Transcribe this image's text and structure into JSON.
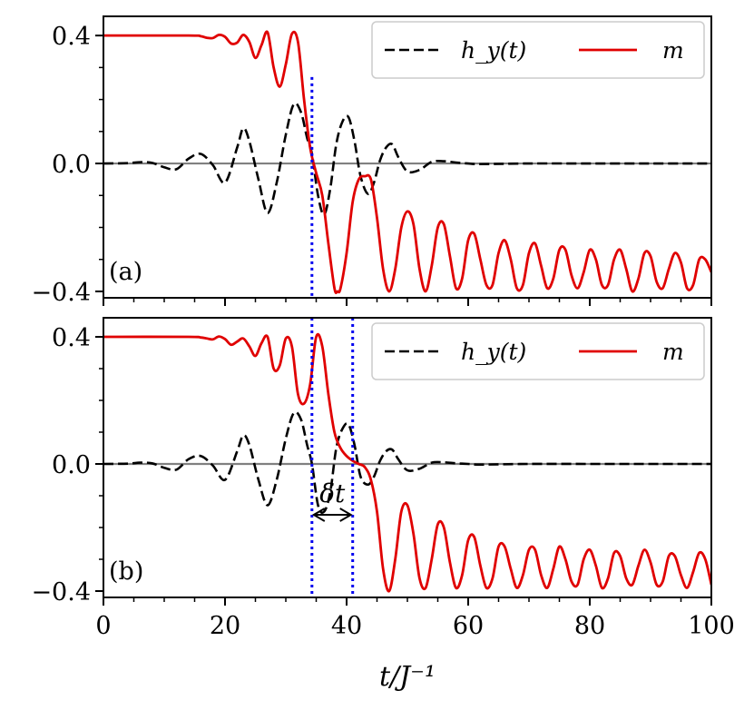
{
  "chart_data": [
    {
      "type": "line",
      "panel_label": "(a)",
      "xlim": [
        0,
        100
      ],
      "ylim": [
        -0.42,
        0.46
      ],
      "yticks": [
        0.4,
        0.0,
        -0.4
      ],
      "ytick_labels": [
        "0.4",
        "0.0",
        "−0.4"
      ],
      "zero_line": true,
      "legend": {
        "placement": "top-right",
        "entries": [
          "h_y(t)",
          "m"
        ]
      },
      "vlines": [
        34.3
      ],
      "series": [
        {
          "name": "h_y(t)",
          "style": "dashed",
          "color": "#000000",
          "x": [
            0,
            4,
            6,
            8,
            10,
            12,
            14,
            16,
            18,
            20,
            22,
            23,
            24,
            25.5,
            27,
            28.5,
            30,
            31.3,
            32.5,
            33.5,
            34.3,
            35.3,
            36.3,
            37.3,
            38.3,
            39.3,
            40.3,
            41.3,
            42.3,
            43.5,
            44.5,
            45.5,
            46.5,
            47.5,
            48.5,
            50,
            52,
            54,
            56,
            58,
            60,
            62,
            70,
            80,
            90,
            100
          ],
          "y": [
            0,
            0.001,
            0.004,
            0.002,
            -0.012,
            -0.018,
            0.015,
            0.03,
            -0.005,
            -0.06,
            0.05,
            0.11,
            0.07,
            -0.05,
            -0.155,
            -0.06,
            0.09,
            0.185,
            0.16,
            0.08,
            0.03,
            -0.1,
            -0.16,
            -0.08,
            0.06,
            0.13,
            0.145,
            0.07,
            -0.04,
            -0.095,
            -0.06,
            0.01,
            0.05,
            0.06,
            0.02,
            -0.025,
            -0.02,
            0.005,
            0.007,
            0.003,
            0,
            -0.002,
            0,
            0,
            0,
            0
          ]
        },
        {
          "name": "m",
          "style": "solid",
          "color": "#e00000",
          "x": [
            0,
            14,
            16,
            17,
            18,
            19,
            20,
            21,
            22,
            23,
            24,
            25,
            26,
            27,
            28,
            29,
            30,
            31,
            32,
            33,
            34,
            35,
            36,
            37,
            38,
            38.5,
            39,
            40,
            41,
            42,
            43,
            44,
            45,
            46,
            47,
            48,
            49,
            50,
            51,
            52,
            53,
            54,
            55,
            56,
            57,
            58,
            59,
            60,
            61,
            62,
            63,
            64,
            65,
            66,
            67,
            68,
            69,
            70,
            71,
            72,
            73,
            74,
            75,
            76,
            77,
            78,
            79,
            80,
            81,
            82,
            83,
            84,
            85,
            86,
            87,
            88,
            89,
            90,
            91,
            92,
            93,
            94,
            95,
            96,
            97,
            98,
            99,
            100
          ],
          "y": [
            0.4,
            0.4,
            0.398,
            0.393,
            0.392,
            0.402,
            0.396,
            0.375,
            0.378,
            0.402,
            0.38,
            0.33,
            0.37,
            0.41,
            0.3,
            0.24,
            0.31,
            0.405,
            0.38,
            0.2,
            0.05,
            -0.03,
            -0.1,
            -0.25,
            -0.39,
            -0.4,
            -0.39,
            -0.28,
            -0.12,
            -0.05,
            -0.04,
            -0.05,
            -0.17,
            -0.33,
            -0.4,
            -0.33,
            -0.2,
            -0.15,
            -0.19,
            -0.33,
            -0.4,
            -0.32,
            -0.2,
            -0.19,
            -0.29,
            -0.39,
            -0.36,
            -0.24,
            -0.22,
            -0.3,
            -0.38,
            -0.38,
            -0.28,
            -0.24,
            -0.3,
            -0.39,
            -0.38,
            -0.28,
            -0.25,
            -0.32,
            -0.39,
            -0.36,
            -0.27,
            -0.27,
            -0.35,
            -0.39,
            -0.34,
            -0.27,
            -0.3,
            -0.38,
            -0.38,
            -0.3,
            -0.27,
            -0.33,
            -0.4,
            -0.36,
            -0.28,
            -0.29,
            -0.37,
            -0.39,
            -0.33,
            -0.28,
            -0.31,
            -0.39,
            -0.38,
            -0.3,
            -0.3,
            -0.34
          ]
        }
      ]
    },
    {
      "type": "line",
      "panel_label": "(b)",
      "xlim": [
        0,
        100
      ],
      "ylim": [
        -0.42,
        0.46
      ],
      "yticks": [
        0.4,
        0.0,
        -0.4
      ],
      "ytick_labels": [
        "0.4",
        "0.0",
        "−0.4"
      ],
      "xticks": [
        0,
        20,
        40,
        60,
        80,
        100
      ],
      "xtick_labels": [
        "0",
        "20",
        "40",
        "60",
        "80",
        "100"
      ],
      "xlabel": "t/J⁻¹",
      "zero_line": true,
      "legend": {
        "placement": "top-right",
        "entries": [
          "h_y(t)",
          "m"
        ]
      },
      "vlines": [
        34.3,
        41.0
      ],
      "annotation": {
        "text": "δt",
        "from": 34.3,
        "to": 41.0,
        "y": -0.16
      },
      "series": [
        {
          "name": "h_y(t)",
          "style": "dashed",
          "color": "#000000",
          "x": [
            0,
            4,
            6,
            8,
            10,
            12,
            14,
            16,
            18,
            20,
            22,
            23,
            24,
            25.5,
            27,
            28.5,
            30,
            31.3,
            32.5,
            33.5,
            34.3,
            35.3,
            36.3,
            37.3,
            38.3,
            39.3,
            40.3,
            41.3,
            42.3,
            43.5,
            44.5,
            45.5,
            46.5,
            47.5,
            48.5,
            50,
            52,
            54,
            56,
            58,
            60,
            62,
            70,
            80,
            90,
            100
          ],
          "y": [
            0,
            0.001,
            0.004,
            0.002,
            -0.012,
            -0.018,
            0.015,
            0.025,
            -0.005,
            -0.05,
            0.04,
            0.09,
            0.06,
            -0.05,
            -0.13,
            -0.05,
            0.08,
            0.16,
            0.14,
            0.06,
            0,
            -0.13,
            -0.15,
            -0.09,
            0.05,
            0.11,
            0.125,
            0.06,
            -0.04,
            -0.065,
            -0.04,
            0.01,
            0.04,
            0.045,
            0.015,
            -0.02,
            -0.015,
            0.004,
            0.005,
            0.002,
            0,
            -0.002,
            0,
            0,
            0,
            0
          ]
        },
        {
          "name": "m",
          "style": "solid",
          "color": "#e00000",
          "x": [
            0,
            14,
            16,
            17,
            18,
            19,
            20,
            21,
            22,
            23,
            24,
            25,
            26,
            27,
            28,
            29,
            30,
            31,
            32,
            33,
            34,
            35,
            36,
            37,
            38,
            39,
            40,
            41,
            42,
            43,
            44,
            45,
            46,
            47,
            48,
            49,
            50,
            51,
            52,
            53,
            54,
            55,
            56,
            57,
            58,
            59,
            60,
            61,
            62,
            63,
            64,
            65,
            66,
            67,
            68,
            69,
            70,
            71,
            72,
            73,
            74,
            75,
            76,
            77,
            78,
            79,
            80,
            81,
            82,
            83,
            84,
            85,
            86,
            87,
            88,
            89,
            90,
            91,
            92,
            93,
            94,
            95,
            96,
            97,
            98,
            99,
            100
          ],
          "y": [
            0.4,
            0.4,
            0.398,
            0.395,
            0.392,
            0.401,
            0.393,
            0.375,
            0.385,
            0.395,
            0.37,
            0.34,
            0.38,
            0.4,
            0.3,
            0.31,
            0.395,
            0.37,
            0.22,
            0.19,
            0.25,
            0.4,
            0.37,
            0.22,
            0.1,
            0.05,
            0.025,
            0.01,
            0,
            -0.01,
            -0.05,
            -0.15,
            -0.33,
            -0.4,
            -0.3,
            -0.15,
            -0.13,
            -0.22,
            -0.36,
            -0.39,
            -0.3,
            -0.19,
            -0.2,
            -0.31,
            -0.39,
            -0.35,
            -0.24,
            -0.23,
            -0.32,
            -0.39,
            -0.36,
            -0.26,
            -0.26,
            -0.33,
            -0.39,
            -0.35,
            -0.27,
            -0.27,
            -0.35,
            -0.39,
            -0.33,
            -0.26,
            -0.3,
            -0.37,
            -0.38,
            -0.3,
            -0.27,
            -0.32,
            -0.39,
            -0.36,
            -0.28,
            -0.29,
            -0.36,
            -0.38,
            -0.32,
            -0.27,
            -0.31,
            -0.38,
            -0.37,
            -0.29,
            -0.29,
            -0.35,
            -0.39,
            -0.34,
            -0.28,
            -0.3,
            -0.38
          ]
        }
      ]
    }
  ]
}
